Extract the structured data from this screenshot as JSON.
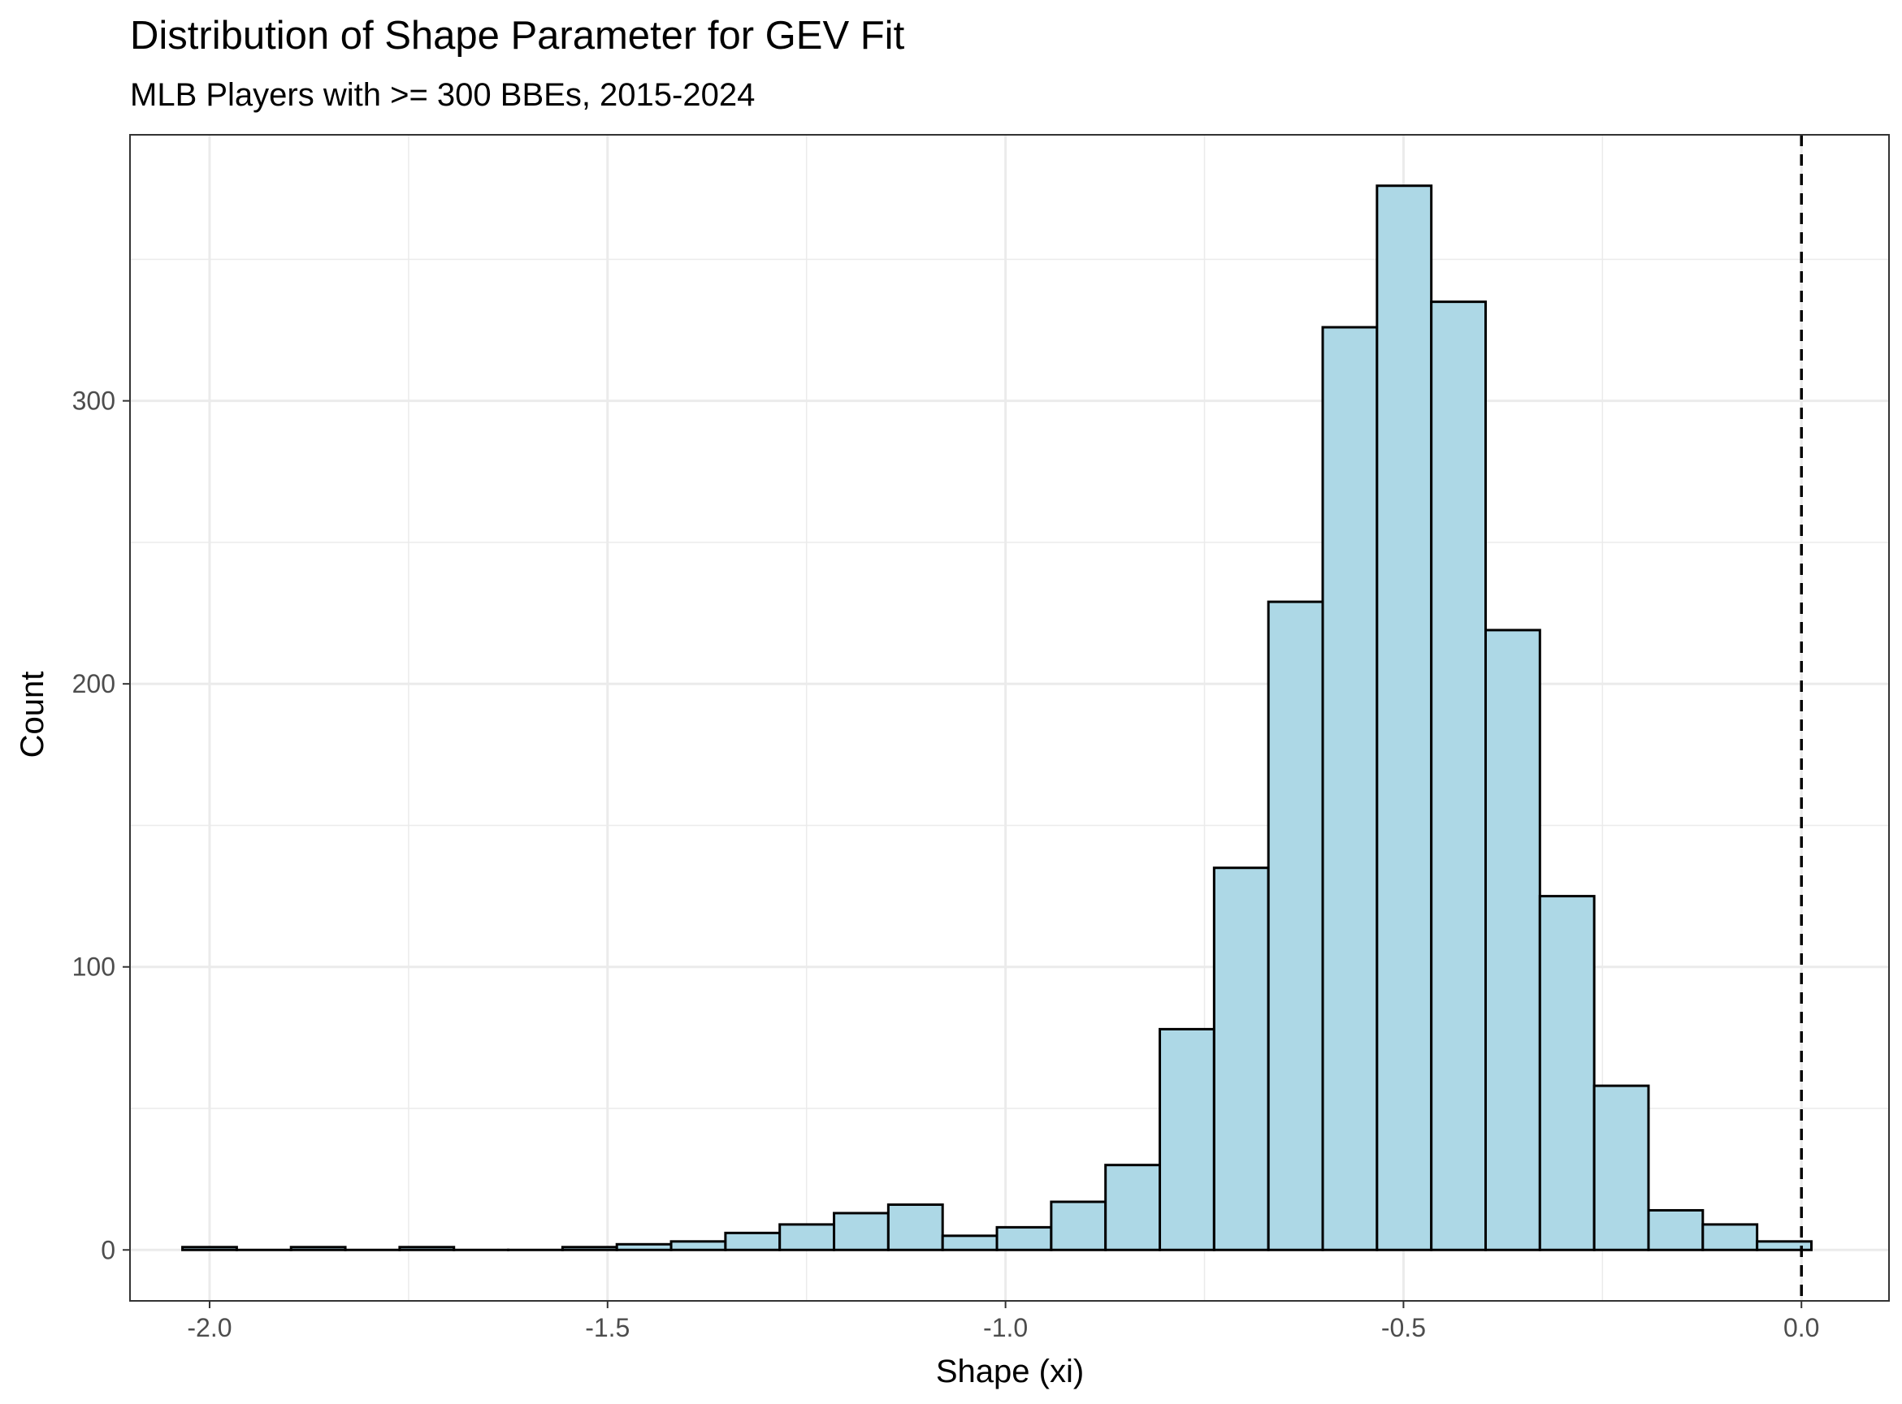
{
  "chart_data": {
    "type": "bar",
    "subtype": "histogram",
    "title": "Distribution of Shape Parameter for GEV Fit",
    "subtitle": "MLB Players with >= 300 BBEs, 2015-2024",
    "xlabel": "Shape (xi)",
    "ylabel": "Count",
    "xlim": [
      -2.1,
      0.11
    ],
    "ylim": [
      -18,
      394
    ],
    "x_ticks": [
      -2.0,
      -1.5,
      -1.0,
      -0.5,
      0.0
    ],
    "x_tick_labels": [
      "-2.0",
      "-1.5",
      "-1.0",
      "-0.5",
      "0.0"
    ],
    "y_ticks": [
      0,
      100,
      200,
      300
    ],
    "y_tick_labels": [
      "0",
      "100",
      "200",
      "300"
    ],
    "bin_width": 0.06822,
    "bin_start": -2.0341,
    "counts": [
      1,
      0,
      1,
      0,
      1,
      0,
      0,
      1,
      2,
      3,
      6,
      9,
      13,
      16,
      5,
      8,
      17,
      30,
      78,
      135,
      229,
      326,
      376,
      335,
      219,
      125,
      58,
      14,
      9,
      3
    ],
    "reference_line": {
      "x": 0.0,
      "style": "dashed",
      "color": "#000000"
    },
    "grid": true,
    "colors": {
      "fill": "#ADD8E6",
      "outline": "#000000",
      "grid": "#EBEBEB",
      "panel_border": "#333333"
    }
  }
}
